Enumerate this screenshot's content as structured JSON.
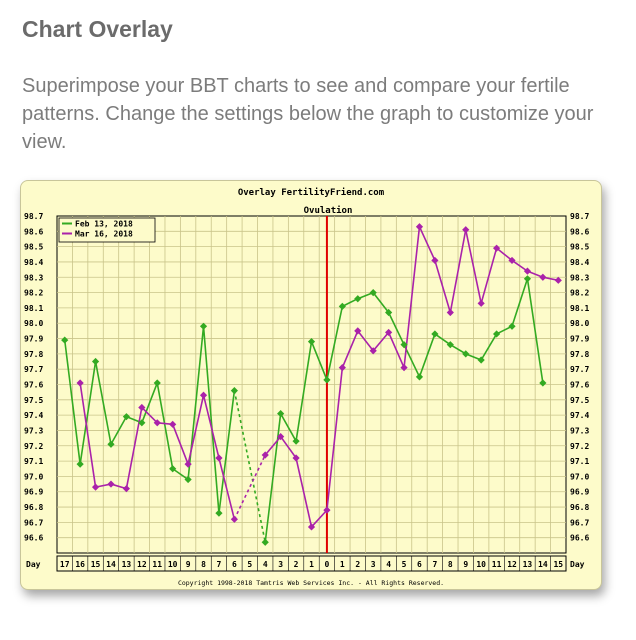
{
  "page": {
    "title": "Chart Overlay",
    "description": "Superimpose your BBT charts to see and compare your fertile patterns. Change the settings below the graph to customize your view."
  },
  "chart_data": {
    "type": "line",
    "title": "Overlay FertilityFriend.com",
    "subtitle": "Ovulation",
    "xlabel": "Day",
    "footer": "Copyright 1998-2018 Tamtris Web Services Inc. - All Rights Reserved.",
    "x": [
      "17",
      "16",
      "15",
      "14",
      "13",
      "12",
      "11",
      "10",
      "9",
      "8",
      "7",
      "6",
      "5",
      "4",
      "3",
      "2",
      "1",
      "0",
      "1",
      "2",
      "3",
      "4",
      "5",
      "6",
      "7",
      "8",
      "9",
      "10",
      "11",
      "12",
      "13",
      "14",
      "15"
    ],
    "ylim": [
      96.5,
      98.7
    ],
    "yticks": [
      "98.7",
      "98.6",
      "98.5",
      "98.4",
      "98.3",
      "98.2",
      "98.1",
      "98.0",
      "97.9",
      "97.8",
      "97.7",
      "97.6",
      "97.5",
      "97.4",
      "97.3",
      "97.2",
      "97.1",
      "97.0",
      "96.9",
      "96.8",
      "96.7",
      "96.6"
    ],
    "ovulation_index": 17,
    "grid": true,
    "legend_position": "top-left",
    "series": [
      {
        "name": "Feb 13, 2018",
        "color": "#33aa22",
        "values": [
          97.89,
          97.08,
          97.75,
          97.21,
          97.39,
          97.35,
          97.61,
          97.05,
          96.98,
          97.98,
          96.76,
          97.56,
          null,
          96.57,
          97.41,
          97.23,
          97.88,
          97.63,
          98.11,
          98.16,
          98.2,
          98.07,
          97.86,
          97.65,
          97.93,
          97.86,
          97.8,
          97.76,
          97.93,
          97.98,
          98.29,
          97.61,
          null
        ],
        "dashed_segments": [
          [
            11,
            13
          ]
        ]
      },
      {
        "name": "Mar 16, 2018",
        "color": "#aa22aa",
        "values": [
          null,
          97.61,
          96.93,
          96.95,
          96.92,
          97.45,
          97.35,
          97.34,
          97.08,
          97.53,
          97.12,
          96.72,
          null,
          97.14,
          97.26,
          97.12,
          96.67,
          96.78,
          97.71,
          97.95,
          97.82,
          97.94,
          97.71,
          98.63,
          98.41,
          98.07,
          98.61,
          98.13,
          98.49,
          98.41,
          98.34,
          98.3,
          98.28
        ],
        "dashed_segments": [
          [
            11,
            13
          ]
        ]
      }
    ]
  }
}
